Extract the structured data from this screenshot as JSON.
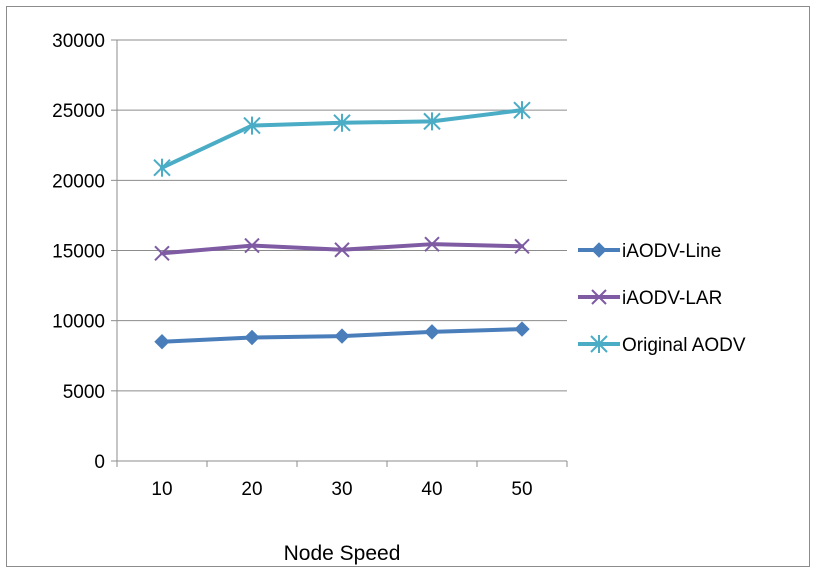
{
  "chart_data": {
    "type": "line",
    "title": "",
    "xlabel": "Node Speed",
    "ylabel": "",
    "categories": [
      "10",
      "20",
      "30",
      "40",
      "50"
    ],
    "y_ticks": [
      "0",
      "5000",
      "10000",
      "15000",
      "20000",
      "25000",
      "30000"
    ],
    "ylim": [
      0,
      30000
    ],
    "grid": "horizontal",
    "legend_position": "right",
    "series": [
      {
        "name": "iAODV-Line",
        "color": "#4a7ebb",
        "marker": "diamond",
        "values": [
          8500,
          8800,
          8900,
          9200,
          9400
        ]
      },
      {
        "name": "iAODV-LAR",
        "color": "#7e5ba3",
        "marker": "x",
        "values": [
          14800,
          15350,
          15050,
          15450,
          15300
        ]
      },
      {
        "name": "Original AODV",
        "color": "#4bacc6",
        "marker": "star",
        "values": [
          20900,
          23900,
          24100,
          24200,
          25000
        ]
      }
    ]
  }
}
